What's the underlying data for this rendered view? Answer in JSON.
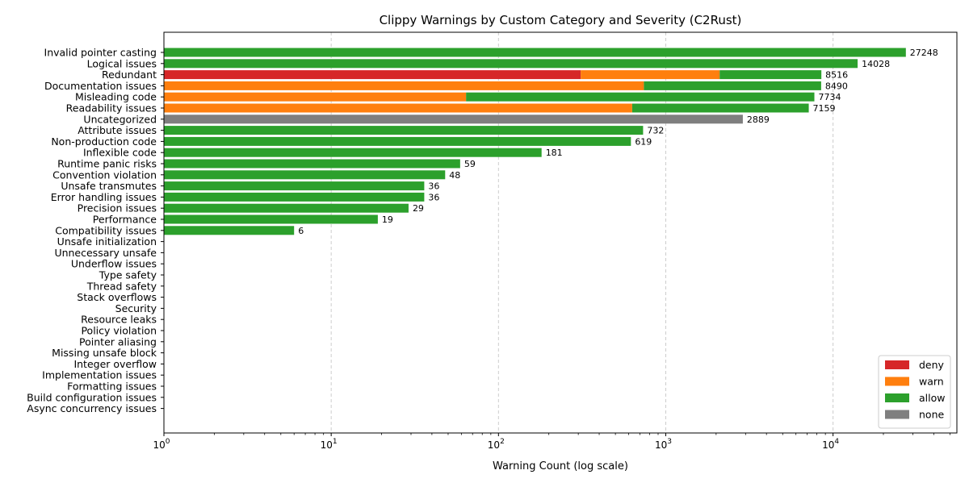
{
  "chart_data": {
    "type": "bar",
    "orientation": "horizontal",
    "stacked": true,
    "title": "Clippy Warnings by Custom Category and Severity (C2Rust)",
    "xlabel": "Warning Count (log scale)",
    "ylabel": "",
    "x_scale": "log",
    "xlim": [
      1,
      55000
    ],
    "x_ticks": [
      1,
      10,
      100,
      1000,
      10000
    ],
    "x_tick_labels": [
      {
        "base": "10",
        "exp": "0"
      },
      {
        "base": "10",
        "exp": "1"
      },
      {
        "base": "10",
        "exp": "2"
      },
      {
        "base": "10",
        "exp": "3"
      },
      {
        "base": "10",
        "exp": "4"
      }
    ],
    "grid": "x-dashed",
    "legend_position": "lower right",
    "categories": [
      "Invalid pointer casting",
      "Logical issues",
      "Redundant",
      "Documentation issues",
      "Misleading code",
      "Readability issues",
      "Uncategorized",
      "Attribute issues",
      "Non-production code",
      "Inflexible code",
      "Runtime panic risks",
      "Convention violation",
      "Unsafe transmutes",
      "Error handling issues",
      "Precision issues",
      "Performance",
      "Compatibility issues",
      "Unsafe initialization",
      "Unnecessary unsafe",
      "Underflow issues",
      "Type safety",
      "Thread safety",
      "Stack overflows",
      "Security",
      "Resource leaks",
      "Policy violation",
      "Pointer aliasing",
      "Missing unsafe block",
      "Integer overflow",
      "Implementation issues",
      "Formatting issues",
      "Build configuration issues",
      "Async concurrency issues"
    ],
    "series": [
      {
        "name": "deny",
        "color": "#d62728",
        "values": [
          0,
          0,
          310,
          0,
          0,
          0,
          0,
          0,
          0,
          0,
          0,
          0,
          0,
          0,
          0,
          0,
          0,
          0,
          0,
          0,
          0,
          0,
          0,
          0,
          0,
          0,
          0,
          0,
          0,
          0,
          0,
          0,
          0
        ]
      },
      {
        "name": "warn",
        "color": "#ff7f0e",
        "values": [
          0,
          0,
          1790,
          740,
          64,
          630,
          0,
          0,
          0,
          0,
          0,
          0,
          0,
          0,
          0,
          0,
          0,
          0,
          0,
          0,
          0,
          0,
          0,
          0,
          0,
          0,
          0,
          0,
          0,
          0,
          0,
          0,
          0
        ]
      },
      {
        "name": "allow",
        "color": "#2ca02c",
        "values": [
          27248,
          14028,
          6416,
          7750,
          7670,
          6529,
          0,
          732,
          619,
          181,
          59,
          48,
          36,
          36,
          29,
          19,
          6,
          0,
          0,
          0,
          0,
          0,
          0,
          0,
          0,
          0,
          0,
          0,
          0,
          0,
          0,
          0,
          0
        ]
      },
      {
        "name": "none",
        "color": "#7f7f7f",
        "values": [
          0,
          0,
          0,
          0,
          0,
          0,
          2889,
          0,
          0,
          0,
          0,
          0,
          0,
          0,
          0,
          0,
          0,
          0,
          0,
          0,
          0,
          0,
          0,
          0,
          0,
          0,
          0,
          0,
          0,
          0,
          0,
          0,
          0
        ]
      }
    ],
    "totals": [
      "27248",
      "14028",
      "8516",
      "8490",
      "7734",
      "7159",
      "2889",
      "732",
      "619",
      "181",
      "59",
      "48",
      "36",
      "36",
      "29",
      "19",
      "6",
      "",
      "",
      "",
      "",
      "",
      "",
      "",
      "",
      "",
      "",
      "",
      "",
      "",
      "",
      "",
      ""
    ]
  }
}
